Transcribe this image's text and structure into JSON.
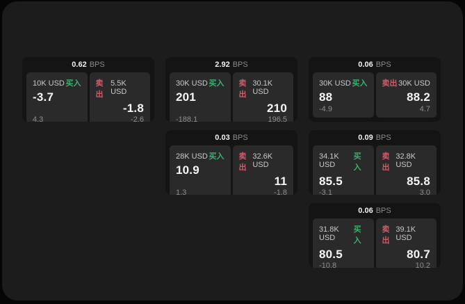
{
  "labels": {
    "bps_unit": "BPS",
    "buy": "买入",
    "sell": "卖出"
  },
  "colors": {
    "buy": "#3fae6e",
    "sell": "#d25a6b",
    "window_bg": "#1c1c1c",
    "card_bg": "#141414",
    "panel_bg": "#2a2a2a"
  },
  "cards": [
    {
      "bps": "0.62",
      "buy": {
        "size": "10K USD",
        "value": "-3.7",
        "delta": "4.3"
      },
      "sell": {
        "size": "5.5K USD",
        "value": "-1.8",
        "delta": "-2.6"
      }
    },
    {
      "bps": "2.92",
      "buy": {
        "size": "30K USD",
        "value": "201",
        "delta": "-188.1"
      },
      "sell": {
        "size": "30.1K USD",
        "value": "210",
        "delta": "196.5"
      }
    },
    {
      "bps": "0.06",
      "buy": {
        "size": "30K USD",
        "value": "88",
        "delta": "-4.9"
      },
      "sell": {
        "size": "30K USD",
        "value": "88.2",
        "delta": "4.7"
      }
    },
    {
      "bps": "0.03",
      "buy": {
        "size": "28K USD",
        "value": "10.9",
        "delta": "1.3"
      },
      "sell": {
        "size": "32.6K USD",
        "value": "11",
        "delta": "-1.8"
      }
    },
    {
      "bps": "0.09",
      "buy": {
        "size": "34.1K USD",
        "value": "85.5",
        "delta": "-3.1"
      },
      "sell": {
        "size": "32.8K USD",
        "value": "85.8",
        "delta": "3.0"
      }
    },
    {
      "bps": "0.06",
      "buy": {
        "size": "31.8K USD",
        "value": "80.5",
        "delta": "-10.8"
      },
      "sell": {
        "size": "39.1K USD",
        "value": "80.7",
        "delta": "10.2"
      }
    }
  ]
}
